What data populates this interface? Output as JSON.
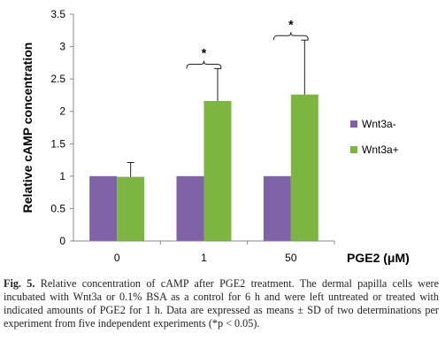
{
  "chart_data": {
    "type": "bar",
    "categories": [
      "0",
      "1",
      "50"
    ],
    "series": [
      {
        "name": "Wnt3a-",
        "color": "#7f62a8",
        "values": [
          1,
          1,
          1
        ],
        "errors": [
          null,
          null,
          null
        ]
      },
      {
        "name": "Wnt3a+",
        "color": "#7cb540",
        "values": [
          0.99,
          2.16,
          2.26
        ],
        "errors": [
          0.22,
          0.5,
          0.84
        ]
      }
    ],
    "xlabel": "PGE2 (μM)",
    "ylabel": "Relative cAMP concentration",
    "ylim": [
      0,
      3.5
    ],
    "yticks": [
      "0",
      "0.5",
      "1",
      "1.5",
      "2",
      "2.5",
      "3",
      "3.5"
    ],
    "legend_position": "right",
    "grid": false,
    "annotations": [
      {
        "category": "1",
        "text": "*"
      },
      {
        "category": "50",
        "text": "*"
      }
    ]
  },
  "caption": {
    "label": "Fig. 5.",
    "text": "Relative concentration of cAMP after PGE2 treatment. The dermal papilla cells were incubated with Wnt3a or 0.1% BSA as a control for 6 h and were left untreated or treated with indicated amounts of PGE2 for 1 h. Data are expressed as means ± SD of two determinations per experiment from five independent experiments (*p < 0.05)."
  }
}
